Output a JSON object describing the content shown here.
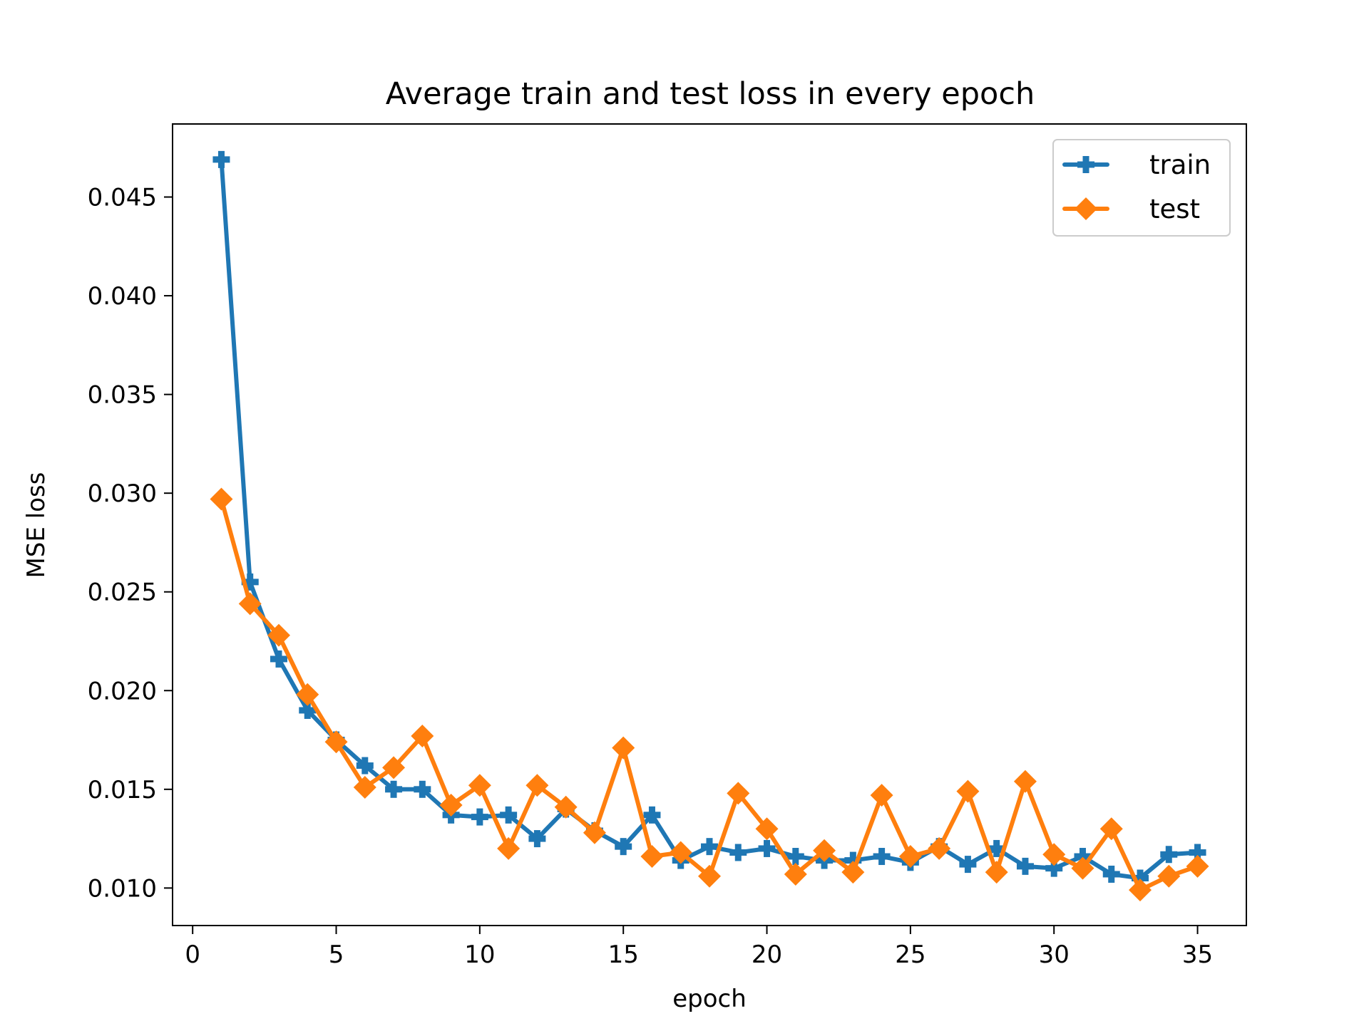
{
  "chart_data": {
    "type": "line",
    "title": "Average train and test loss in every epoch",
    "xlabel": "epoch",
    "ylabel": "MSE loss",
    "xlim": [
      -0.7,
      36.7
    ],
    "ylim": [
      0.0081,
      0.0487
    ],
    "xticks": [
      0,
      5,
      10,
      15,
      20,
      25,
      30,
      35
    ],
    "yticks": [
      0.01,
      0.015,
      0.02,
      0.025,
      0.03,
      0.035,
      0.04,
      0.045
    ],
    "ytick_labels": [
      "0.010",
      "0.015",
      "0.020",
      "0.025",
      "0.030",
      "0.035",
      "0.040",
      "0.045"
    ],
    "grid": false,
    "legend_position": "top-right",
    "x": [
      1,
      2,
      3,
      4,
      5,
      6,
      7,
      8,
      9,
      10,
      11,
      12,
      13,
      14,
      15,
      16,
      17,
      18,
      19,
      20,
      21,
      22,
      23,
      24,
      25,
      26,
      27,
      28,
      29,
      30,
      31,
      32,
      33,
      34,
      35
    ],
    "series": [
      {
        "name": "train",
        "color": "#1f77b4",
        "marker": "plus",
        "values": [
          0.0469,
          0.0255,
          0.0216,
          0.019,
          0.0175,
          0.0162,
          0.015,
          0.015,
          0.0137,
          0.0136,
          0.0137,
          0.0125,
          0.014,
          0.0129,
          0.0121,
          0.0137,
          0.0114,
          0.0121,
          0.0118,
          0.012,
          0.0116,
          0.0114,
          0.0114,
          0.0116,
          0.0113,
          0.0121,
          0.0112,
          0.012,
          0.0111,
          0.011,
          0.0116,
          0.0107,
          0.0105,
          0.0117,
          0.0118
        ]
      },
      {
        "name": "test",
        "color": "#ff7f0e",
        "marker": "diamond",
        "values": [
          0.0297,
          0.0244,
          0.0228,
          0.0198,
          0.0174,
          0.0151,
          0.0161,
          0.0177,
          0.0142,
          0.0152,
          0.012,
          0.0152,
          0.0141,
          0.0128,
          0.0171,
          0.0116,
          0.0118,
          0.0106,
          0.0148,
          0.013,
          0.0107,
          0.0119,
          0.0108,
          0.0147,
          0.0116,
          0.012,
          0.0149,
          0.0108,
          0.0154,
          0.0117,
          0.011,
          0.013,
          0.0099,
          0.0106,
          0.0111
        ]
      }
    ]
  }
}
